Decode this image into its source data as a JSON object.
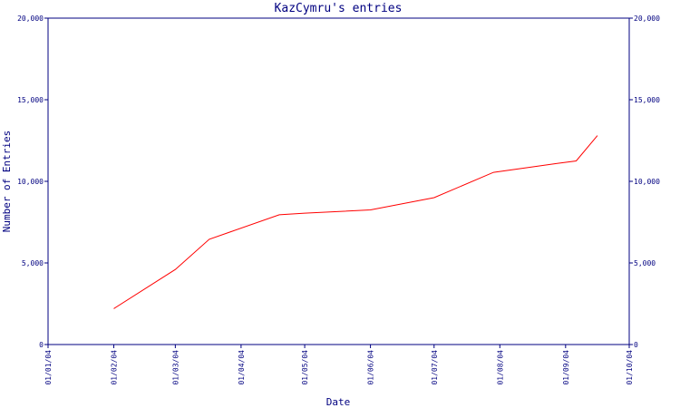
{
  "chart_data": {
    "type": "line",
    "title": "KazCymru's entries",
    "xlabel": "Date",
    "ylabel": "Number of Entries",
    "x_tick_labels": [
      "01/01/04",
      "01/02/04",
      "01/03/04",
      "01/04/04",
      "01/05/04",
      "01/06/04",
      "01/07/04",
      "01/08/04",
      "01/09/04",
      "01/10/04"
    ],
    "y_tick_labels": [
      "0",
      "5,000",
      "10,000",
      "15,000",
      "20,000"
    ],
    "y_ticks": [
      0,
      5000,
      10000,
      15000,
      20000
    ],
    "xlim": [
      "2004-01-01",
      "2004-10-01"
    ],
    "ylim": [
      0,
      20000
    ],
    "grid": false,
    "legend": "none",
    "line_color": "#ff0000",
    "axis_color": "#000080",
    "series": [
      {
        "x": [
          "2004-02-01",
          "2004-03-01",
          "2004-03-17",
          "2004-04-19",
          "2004-05-01",
          "2004-06-01",
          "2004-07-01",
          "2004-07-29",
          "2004-08-28",
          "2004-09-06",
          "2004-09-16"
        ],
        "y": [
          2200,
          4600,
          6450,
          7950,
          8050,
          8250,
          9000,
          10550,
          11100,
          11250,
          12800
        ]
      }
    ]
  }
}
